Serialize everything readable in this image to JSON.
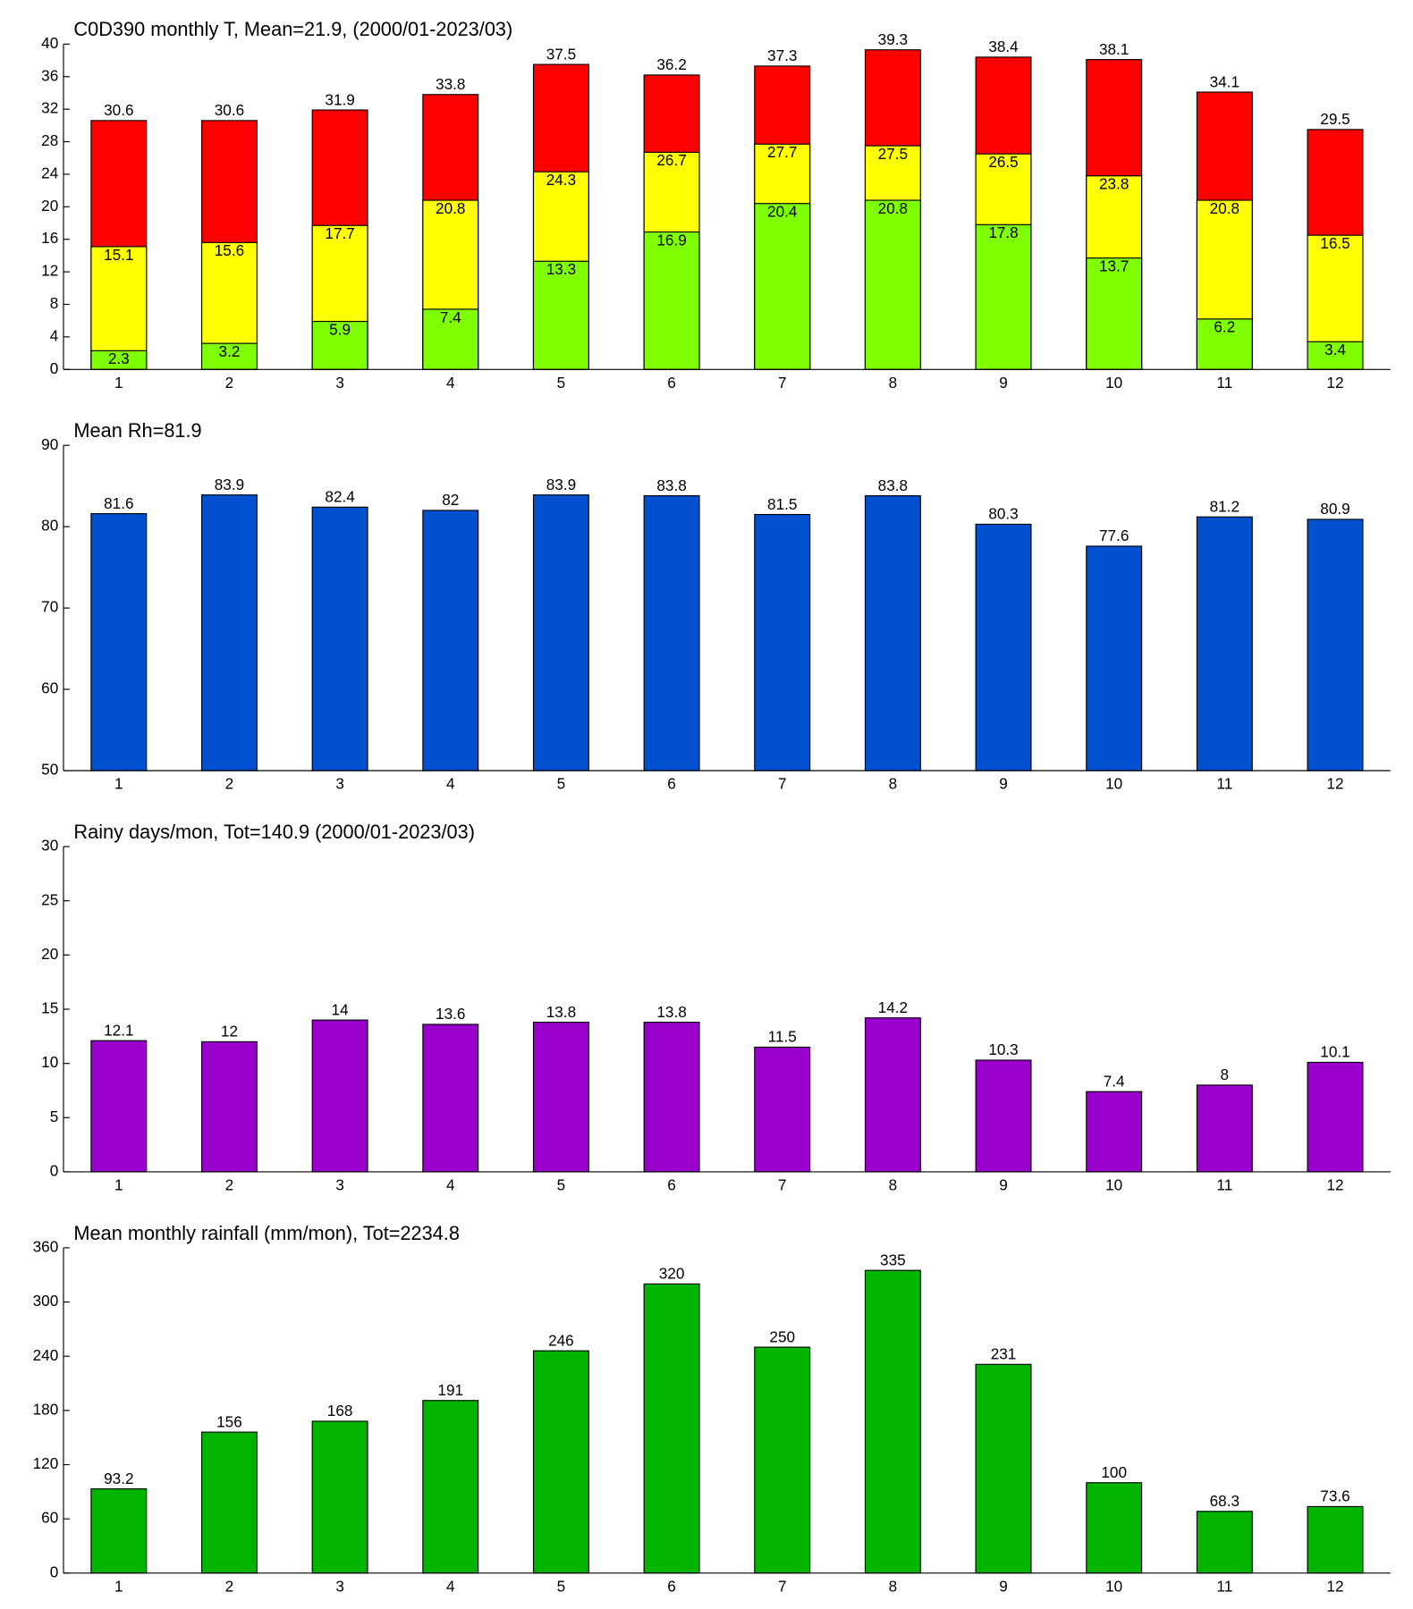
{
  "chart_data": [
    {
      "type": "bar",
      "title": "C0D390 monthly T, Mean=21.9, (2000/01-2023/03)",
      "barmode": "overlay",
      "categories": [
        1,
        2,
        3,
        4,
        5,
        6,
        7,
        8,
        9,
        10,
        11,
        12
      ],
      "series": [
        {
          "color": "#ff0000",
          "values": [
            30.6,
            30.6,
            31.9,
            33.8,
            37.5,
            36.2,
            37.3,
            39.3,
            38.4,
            38.1,
            34.1,
            29.5
          ]
        },
        {
          "color": "#ffff00",
          "values": [
            15.1,
            15.6,
            17.7,
            20.8,
            24.3,
            26.7,
            27.7,
            27.5,
            26.5,
            23.8,
            20.8,
            16.5
          ]
        },
        {
          "color": "#80ff00",
          "values": [
            2.3,
            3.2,
            5.9,
            7.4,
            13.3,
            16.9,
            20.4,
            20.8,
            17.8,
            13.7,
            6.2,
            3.4
          ]
        }
      ],
      "ylim": [
        0,
        40
      ],
      "yticks": [
        0,
        4,
        8,
        12,
        16,
        20,
        24,
        28,
        32,
        36,
        40
      ]
    },
    {
      "type": "bar",
      "title": "Mean Rh=81.9",
      "categories": [
        1,
        2,
        3,
        4,
        5,
        6,
        7,
        8,
        9,
        10,
        11,
        12
      ],
      "series": [
        {
          "color": "#0050d0",
          "values": [
            81.6,
            83.9,
            82.4,
            82,
            83.9,
            83.8,
            81.5,
            83.8,
            80.3,
            77.6,
            81.2,
            80.9
          ]
        }
      ],
      "ylim": [
        50,
        90
      ],
      "yticks": [
        50,
        60,
        70,
        80,
        90
      ]
    },
    {
      "type": "bar",
      "title": "Rainy days/mon, Tot=140.9 (2000/01-2023/03)",
      "categories": [
        1,
        2,
        3,
        4,
        5,
        6,
        7,
        8,
        9,
        10,
        11,
        12
      ],
      "series": [
        {
          "color": "#9900cc",
          "values": [
            12.1,
            12,
            14,
            13.6,
            13.8,
            13.8,
            11.5,
            14.2,
            10.3,
            7.4,
            8,
            10.1
          ]
        }
      ],
      "ylim": [
        0,
        30
      ],
      "yticks": [
        0,
        5,
        10,
        15,
        20,
        25,
        30
      ]
    },
    {
      "type": "bar",
      "title": "Mean monthly rainfall (mm/mon), Tot=2234.8",
      "categories": [
        1,
        2,
        3,
        4,
        5,
        6,
        7,
        8,
        9,
        10,
        11,
        12
      ],
      "series": [
        {
          "color": "#00b400",
          "values": [
            93.2,
            156,
            168,
            191,
            246,
            320,
            250,
            335,
            231,
            100,
            68.3,
            73.6
          ]
        }
      ],
      "ylim": [
        0,
        360
      ],
      "yticks": [
        0,
        60,
        120,
        180,
        240,
        300,
        360
      ]
    }
  ]
}
